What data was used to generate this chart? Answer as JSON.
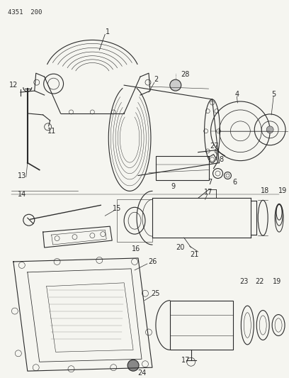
{
  "title": "4351  200",
  "bg_color": "#f5f5f0",
  "line_color": "#2a2a2a",
  "fig_width": 4.08,
  "fig_height": 5.33,
  "dpi": 100
}
